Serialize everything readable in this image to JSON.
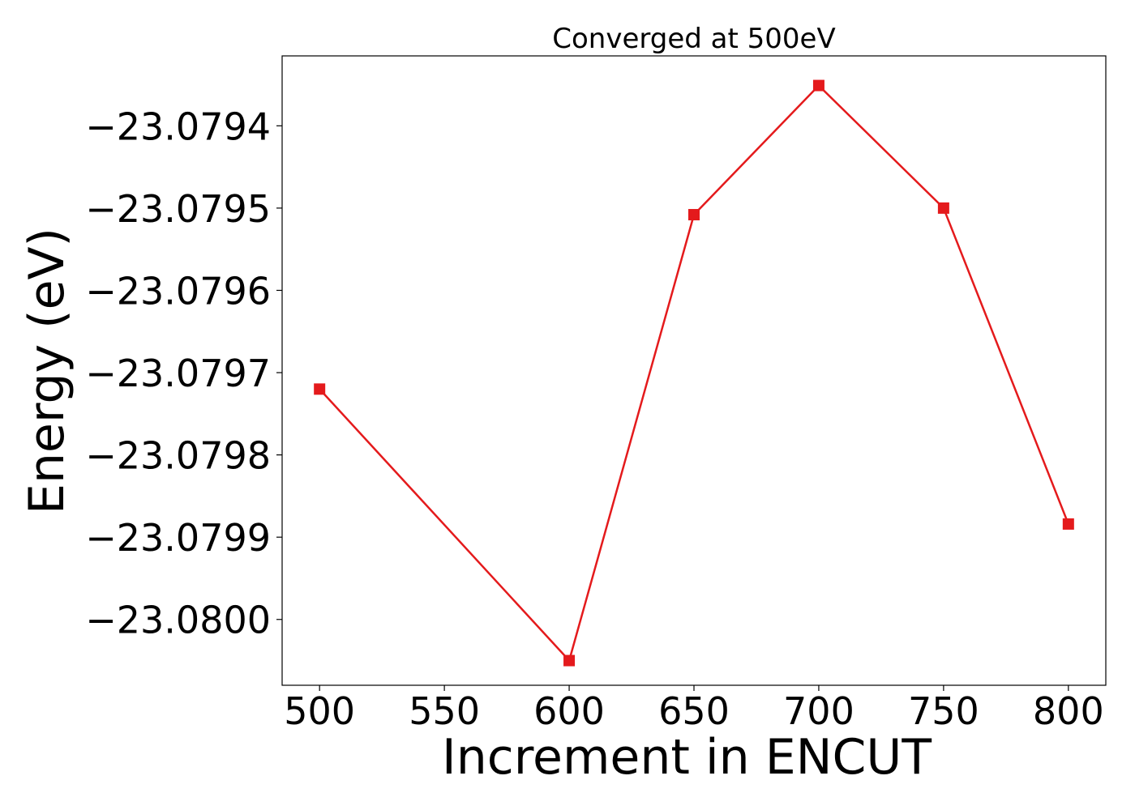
{
  "chart_data": {
    "type": "line",
    "title": "Converged at 500eV",
    "xlabel": "Increment in ENCUT",
    "ylabel": "Energy (eV)",
    "x": [
      500,
      600,
      650,
      700,
      750,
      800
    ],
    "series": [
      {
        "values": [
          -23.07972,
          -23.08005,
          -23.079508,
          -23.079351,
          -23.0795,
          -23.079884
        ],
        "color": "#e41a1c",
        "marker": "square"
      }
    ],
    "xlim": [
      485,
      815
    ],
    "ylim": [
      -23.08008,
      -23.079315
    ],
    "xticks": [
      500,
      550,
      600,
      650,
      700,
      750,
      800
    ],
    "xtick_labels": [
      "500",
      "550",
      "600",
      "650",
      "700",
      "750",
      "800"
    ],
    "yticks": [
      -23.0794,
      -23.0795,
      -23.0796,
      -23.0797,
      -23.0798,
      -23.0799,
      -23.08
    ],
    "ytick_labels": [
      "−23.0794",
      "−23.0795",
      "−23.0796",
      "−23.0797",
      "−23.0798",
      "−23.0799",
      "−23.0800"
    ],
    "grid": false,
    "legend": false
  }
}
